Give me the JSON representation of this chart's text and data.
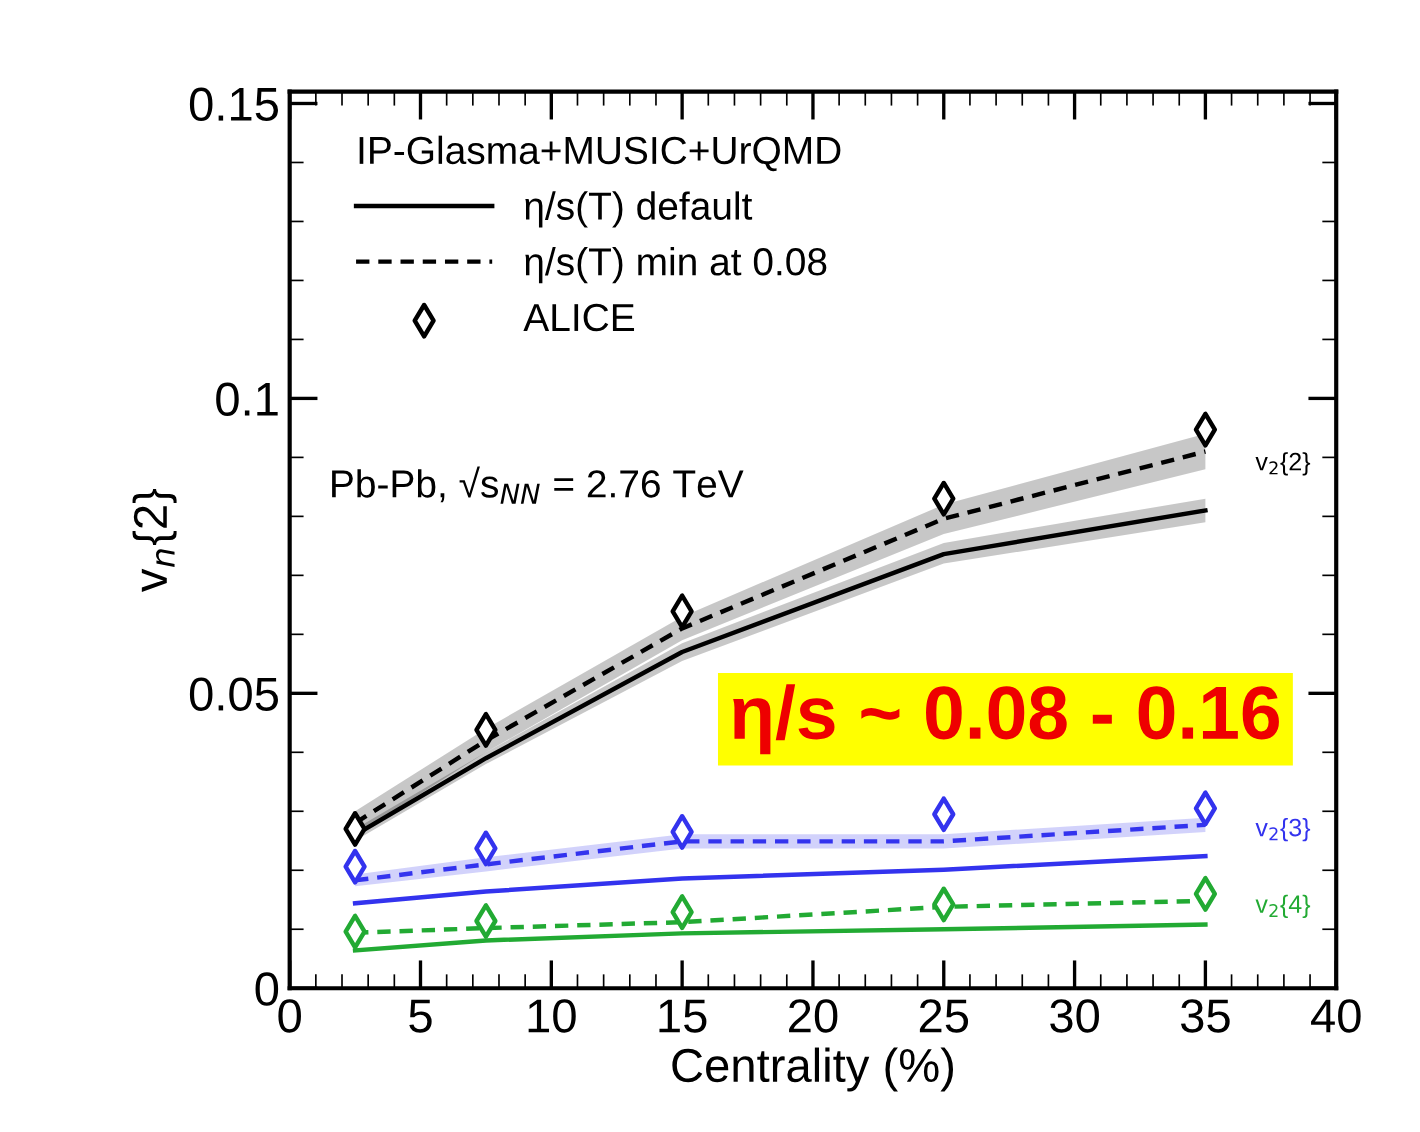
{
  "chart_data": {
    "type": "line",
    "ylabel": "v$_{n}${2}",
    "xlabel": "Centrality (%)",
    "legend_title": "IP-Glasma+MUSIC+UrQMD",
    "legend": "top left",
    "xlim": [
      0,
      40
    ],
    "xticks": [
      0,
      5,
      10,
      15,
      20,
      25,
      30,
      35,
      40
    ],
    "ylim": [
      0,
      0.152
    ],
    "yticks": [
      0,
      0.05,
      0.1,
      0.15
    ],
    "grid": false,
    "x": [
      2.5,
      7.5,
      15,
      25,
      35
    ],
    "series": [
      {
        "name": "η/s(T) default",
        "color": "#000000",
        "line_style": "solid",
        "marker": "none",
        "values": [
          0.026,
          0.039,
          0.057,
          0.0736,
          0.081
        ],
        "lower": [
          0.025,
          0.038,
          0.0555,
          0.072,
          0.079
        ],
        "upper": [
          0.027,
          0.04,
          0.0585,
          0.0755,
          0.083
        ]
      },
      {
        "name": "η/s(T) min at 0.08",
        "color": "#000000",
        "line_style": "dashed",
        "marker": "none",
        "values": [
          0.028,
          0.042,
          0.061,
          0.0796,
          0.091
        ],
        "lower": [
          0.026,
          0.04,
          0.059,
          0.077,
          0.088
        ],
        "upper": [
          0.03,
          0.044,
          0.063,
          0.082,
          0.094
        ]
      },
      {
        "name": "ALICE",
        "type": "scatter",
        "color": "#000000",
        "marker": "diamond",
        "values": [
          0.027,
          0.0438,
          0.0639,
          0.083,
          0.0947
        ]
      },
      {
        "color": "#3333ee",
        "line_style": "solid",
        "marker": "none",
        "values": [
          0.0144,
          0.0164,
          0.0186,
          0.0201,
          0.0224
        ]
      },
      {
        "color": "#3333ee",
        "line_style": "dashed",
        "marker": "none",
        "values": [
          0.0183,
          0.021,
          0.0249,
          0.0249,
          0.0277
        ],
        "lower": [
          0.0173,
          0.0198,
          0.0237,
          0.0237,
          0.0265
        ],
        "upper": [
          0.0193,
          0.0222,
          0.0261,
          0.0261,
          0.0289
        ]
      },
      {
        "type": "scatter",
        "color": "#3333ee",
        "marker": "diamond",
        "values": [
          0.0206,
          0.0237,
          0.0265,
          0.0295,
          0.0305
        ]
      },
      {
        "color": "#22aa33",
        "line_style": "solid",
        "marker": "none",
        "values": [
          0.0064,
          0.0081,
          0.0093,
          0.01,
          0.0108
        ]
      },
      {
        "color": "#22aa33",
        "line_style": "dashed",
        "marker": "none",
        "values": [
          0.0094,
          0.0102,
          0.0112,
          0.0138,
          0.0148
        ]
      },
      {
        "type": "scatter",
        "color": "#22aa33",
        "marker": "diamond",
        "values": [
          0.0096,
          0.0114,
          0.0129,
          0.0142,
          0.016
        ]
      }
    ],
    "annotations": [
      "v$_{2}${2}",
      "v$_{2}${3}",
      "v$_{2}${4}",
      "Pb-Pb, √s$_{NN}$ = 2.76 TeV",
      "η/s ~ 0.08 - 0.16"
    ]
  }
}
